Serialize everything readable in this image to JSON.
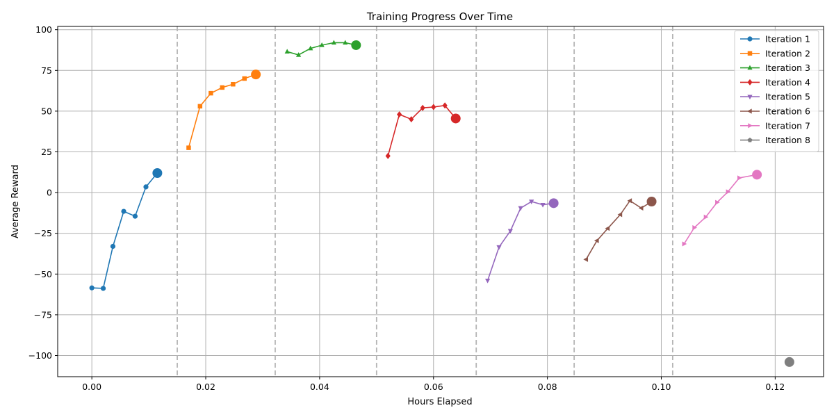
{
  "chart_data": {
    "type": "line",
    "title": "Training Progress Over Time",
    "xlabel": "Hours Elapsed",
    "ylabel": "Average Reward",
    "xlim": [
      -0.006,
      0.1285
    ],
    "ylim": [
      -113,
      102
    ],
    "xticks": [
      0.0,
      0.02,
      0.04,
      0.06,
      0.08,
      0.1,
      0.12
    ],
    "xtick_labels": [
      "0.00",
      "0.02",
      "0.04",
      "0.06",
      "0.08",
      "0.10",
      "0.12"
    ],
    "yticks": [
      -100,
      -75,
      -50,
      -25,
      0,
      25,
      50,
      75,
      100
    ],
    "ytick_labels": [
      "−100",
      "−75",
      "−50",
      "−25",
      "0",
      "25",
      "50",
      "75",
      "100"
    ],
    "grid": true,
    "legend_position": "top-right",
    "iteration_boundaries": [
      0.015,
      0.0322,
      0.05,
      0.0675,
      0.0847,
      0.102
    ],
    "series": [
      {
        "name": "Iteration 1",
        "color": "#1f77b4",
        "marker": "circle",
        "x": [
          0.0,
          0.002,
          0.0037,
          0.0056,
          0.0076,
          0.0095
        ],
        "y": [
          -58.5,
          -58.8,
          -33,
          -11.5,
          -14.5,
          3.5
        ],
        "final": {
          "x": 0.0115,
          "y": 12
        }
      },
      {
        "name": "Iteration 2",
        "color": "#ff7f0e",
        "marker": "square",
        "x": [
          0.017,
          0.019,
          0.0209,
          0.0229,
          0.0248,
          0.0268
        ],
        "y": [
          27.5,
          53,
          61,
          64.5,
          66.5,
          70
        ],
        "final": {
          "x": 0.0288,
          "y": 72.5
        }
      },
      {
        "name": "Iteration 3",
        "color": "#2ca02c",
        "marker": "triangle-up",
        "x": [
          0.0343,
          0.0363,
          0.0384,
          0.0404,
          0.0425,
          0.0445
        ],
        "y": [
          86.5,
          84.5,
          88.5,
          90.5,
          92,
          92
        ],
        "final": {
          "x": 0.0464,
          "y": 90.5
        }
      },
      {
        "name": "Iteration 4",
        "color": "#d62728",
        "marker": "diamond",
        "x": [
          0.052,
          0.054,
          0.0561,
          0.0581,
          0.06,
          0.062
        ],
        "y": [
          22.5,
          48,
          45,
          52,
          52.5,
          53.5
        ],
        "final": {
          "x": 0.0639,
          "y": 45.5
        }
      },
      {
        "name": "Iteration 5",
        "color": "#9467bd",
        "marker": "triangle-down",
        "x": [
          0.0695,
          0.0715,
          0.0735,
          0.0753,
          0.0772,
          0.0792
        ],
        "y": [
          -54,
          -33.5,
          -23.5,
          -9.5,
          -5.5,
          -7.5
        ],
        "final": {
          "x": 0.0811,
          "y": -6.5
        }
      },
      {
        "name": "Iteration 6",
        "color": "#8c564b",
        "marker": "triangle-left",
        "x": [
          0.0868,
          0.0887,
          0.0906,
          0.0928,
          0.0945,
          0.0965
        ],
        "y": [
          -41,
          -29.5,
          -22,
          -13.5,
          -5,
          -9.5
        ],
        "final": {
          "x": 0.0983,
          "y": -5.5
        }
      },
      {
        "name": "Iteration 7",
        "color": "#e377c2",
        "marker": "triangle-right",
        "x": [
          0.104,
          0.1058,
          0.1078,
          0.1098,
          0.1117,
          0.1137
        ],
        "y": [
          -31.5,
          -21.5,
          -15,
          -6,
          0.5,
          9
        ],
        "final": {
          "x": 0.1168,
          "y": 11
        }
      },
      {
        "name": "Iteration 8",
        "color": "#7f7f7f",
        "marker": "pentagon",
        "x": [],
        "y": [],
        "final": {
          "x": 0.1225,
          "y": -104
        }
      }
    ]
  }
}
